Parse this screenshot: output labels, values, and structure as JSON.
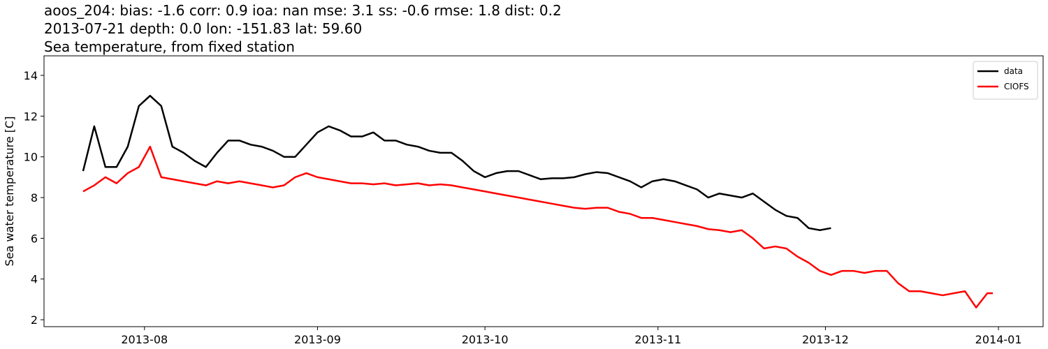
{
  "chart_data": {
    "type": "line",
    "title": "aoos_204: bias: -1.6  corr: 0.9  ioa: nan  mse: 3.1  ss: -0.6  rmse: 1.8  dist: 0.2",
    "subtitle": "2013-07-21 depth: 0.0 lon: -151.83 lat: 59.60",
    "subtitle2": "Sea temperature, from fixed station",
    "y_label": "Sea water temperature [C]",
    "x": [
      "2013-07-21",
      "2013-07-23",
      "2013-07-25",
      "2013-07-27",
      "2013-07-29",
      "2013-07-31",
      "2013-08-02",
      "2013-08-04",
      "2013-08-06",
      "2013-08-08",
      "2013-08-10",
      "2013-08-12",
      "2013-08-14",
      "2013-08-16",
      "2013-08-18",
      "2013-08-20",
      "2013-08-22",
      "2013-08-24",
      "2013-08-26",
      "2013-08-28",
      "2013-08-30",
      "2013-09-01",
      "2013-09-03",
      "2013-09-05",
      "2013-09-07",
      "2013-09-09",
      "2013-09-11",
      "2013-09-13",
      "2013-09-15",
      "2013-09-17",
      "2013-09-19",
      "2013-09-21",
      "2013-09-23",
      "2013-09-25",
      "2013-09-27",
      "2013-09-29",
      "2013-10-01",
      "2013-10-03",
      "2013-10-05",
      "2013-10-07",
      "2013-10-09",
      "2013-10-11",
      "2013-10-13",
      "2013-10-15",
      "2013-10-17",
      "2013-10-19",
      "2013-10-21",
      "2013-10-23",
      "2013-10-25",
      "2013-10-27",
      "2013-10-29",
      "2013-10-31",
      "2013-11-02",
      "2013-11-04",
      "2013-11-06",
      "2013-11-08",
      "2013-11-10",
      "2013-11-12",
      "2013-11-14",
      "2013-11-16",
      "2013-11-18",
      "2013-11-20",
      "2013-11-22",
      "2013-11-24",
      "2013-11-26",
      "2013-11-28",
      "2013-11-30",
      "2013-12-02",
      "2013-12-04",
      "2013-12-06",
      "2013-12-08",
      "2013-12-10",
      "2013-12-12",
      "2013-12-14",
      "2013-12-16",
      "2013-12-18",
      "2013-12-20",
      "2013-12-22",
      "2013-12-24",
      "2013-12-26",
      "2013-12-28",
      "2013-12-30",
      "2013-12-31"
    ],
    "series": [
      {
        "name": "data",
        "color": "#000000",
        "values": [
          9.3,
          11.5,
          9.5,
          9.5,
          10.5,
          12.5,
          13,
          12.5,
          10.5,
          10.2,
          9.8,
          9.5,
          10.2,
          10.8,
          10.8,
          10.6,
          10.5,
          10.3,
          10.0,
          10.0,
          10.6,
          11.2,
          11.5,
          11.3,
          11.0,
          11.0,
          11.2,
          10.8,
          10.8,
          10.6,
          10.5,
          10.3,
          10.2,
          10.2,
          9.8,
          9.3,
          9.0,
          9.2,
          9.3,
          9.3,
          9.1,
          8.9,
          8.95,
          8.95,
          9.0,
          9.15,
          9.25,
          9.2,
          9.0,
          8.8,
          8.5,
          8.8,
          8.9,
          8.8,
          8.6,
          8.4,
          8.0,
          8.2,
          8.1,
          8.0,
          8.2,
          7.8,
          7.4,
          7.1,
          7.0,
          6.5,
          6.4,
          6.5,
          null,
          null,
          null,
          null,
          null,
          null,
          null,
          null,
          null,
          null,
          null,
          null,
          null,
          null,
          null
        ]
      },
      {
        "name": "CIOFS",
        "color": "#ff0000",
        "values": [
          8.3,
          8.6,
          9.0,
          8.7,
          9.2,
          9.5,
          10.5,
          9.0,
          8.9,
          8.8,
          8.7,
          8.6,
          8.8,
          8.7,
          8.8,
          8.7,
          8.6,
          8.5,
          8.6,
          9.0,
          9.2,
          9.0,
          8.9,
          8.8,
          8.7,
          8.7,
          8.65,
          8.7,
          8.6,
          8.65,
          8.7,
          8.6,
          8.65,
          8.6,
          8.5,
          8.4,
          8.3,
          8.2,
          8.1,
          8.0,
          7.9,
          7.8,
          7.7,
          7.6,
          7.5,
          7.45,
          7.5,
          7.5,
          7.3,
          7.2,
          7.0,
          7.0,
          6.9,
          6.8,
          6.7,
          6.6,
          6.45,
          6.4,
          6.3,
          6.4,
          6.0,
          5.5,
          5.6,
          5.5,
          5.1,
          4.8,
          4.4,
          4.2,
          4.4,
          4.4,
          4.3,
          4.4,
          4.4,
          3.8,
          3.4,
          3.4,
          3.3,
          3.2,
          3.3,
          3.4,
          2.6,
          3.3,
          3.3
        ]
      }
    ],
    "xlim": [
      "2013-07-14",
      "2014-01-09"
    ],
    "xticks": [
      {
        "value": "2013-08-01",
        "label": "2013-08"
      },
      {
        "value": "2013-09-01",
        "label": "2013-09"
      },
      {
        "value": "2013-10-01",
        "label": "2013-10"
      },
      {
        "value": "2013-11-01",
        "label": "2013-11"
      },
      {
        "value": "2013-12-01",
        "label": "2013-12"
      },
      {
        "value": "2014-01-01",
        "label": "2014-01"
      }
    ],
    "ylim": [
      1.66,
      14.96
    ],
    "yticks": [
      2,
      4,
      6,
      8,
      10,
      12,
      14
    ],
    "legend": "upper right"
  }
}
